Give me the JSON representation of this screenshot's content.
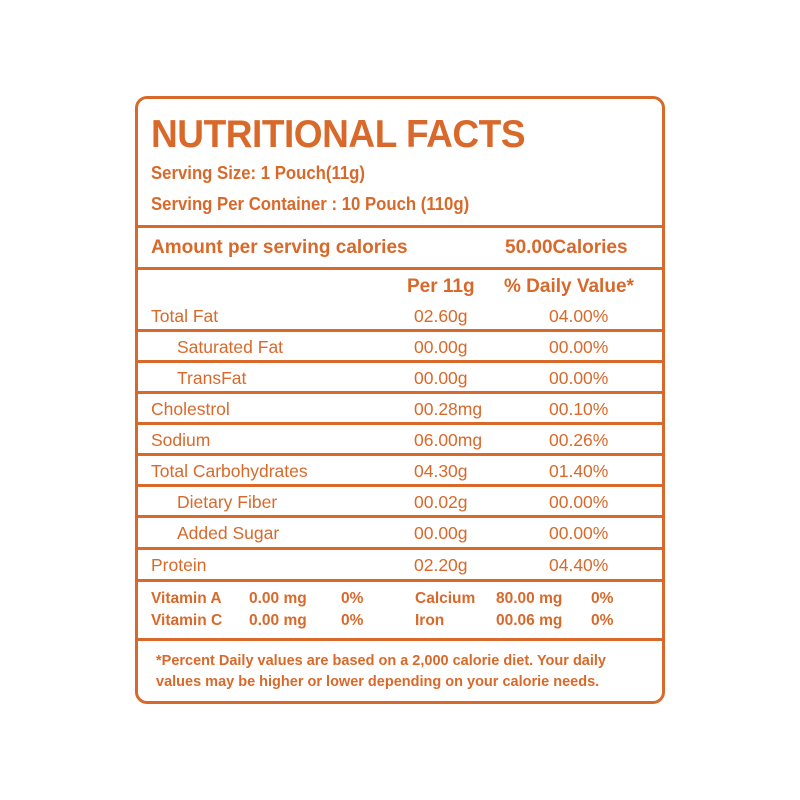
{
  "title": "NUTRITIONAL FACTS",
  "serving_size": "Serving Size: 1 Pouch(11g)",
  "servings_per_container": "Serving Per Container : 10 Pouch (110g)",
  "calories": {
    "label": "Amount per serving calories",
    "value": "50.00Calories"
  },
  "columns": {
    "per": "Per 11g",
    "daily": "% Daily Value*"
  },
  "rows": [
    {
      "label": "Total Fat",
      "per": "02.60g",
      "daily": "04.00%",
      "indent": false
    },
    {
      "label": "Saturated Fat",
      "per": "00.00g",
      "daily": "00.00%",
      "indent": true
    },
    {
      "label": "TransFat",
      "per": "00.00g",
      "daily": "00.00%",
      "indent": true
    },
    {
      "label": "Cholestrol",
      "per": "00.28mg",
      "daily": "00.10%",
      "indent": false
    },
    {
      "label": "Sodium",
      "per": "06.00mg",
      "daily": "00.26%",
      "indent": false
    },
    {
      "label": "Total Carbohydrates",
      "per": "04.30g",
      "daily": "01.40%",
      "indent": false
    },
    {
      "label": "Dietary Fiber",
      "per": "00.02g",
      "daily": "00.00%",
      "indent": true
    },
    {
      "label": "Added Sugar",
      "per": "00.00g",
      "daily": "00.00%",
      "indent": true
    },
    {
      "label": "Protein",
      "per": "02.20g",
      "daily": "04.40%",
      "indent": false
    }
  ],
  "vitamins": [
    {
      "name": "Vitamin A",
      "amount": "0.00 mg",
      "daily": "0%"
    },
    {
      "name": "Vitamin C",
      "amount": "0.00 mg",
      "daily": "0%"
    },
    {
      "name": "Calcium",
      "amount": "80.00 mg",
      "daily": "0%"
    },
    {
      "name": "Iron",
      "amount": "00.06 mg",
      "daily": "0%"
    }
  ],
  "footnote": [
    "*Percent Daily values are based on a 2,000 calorie diet. Your daily",
    "values may be higher or lower depending on your calorie needs."
  ],
  "colors": {
    "accent": "#d9692a",
    "background": "#ffffff"
  }
}
